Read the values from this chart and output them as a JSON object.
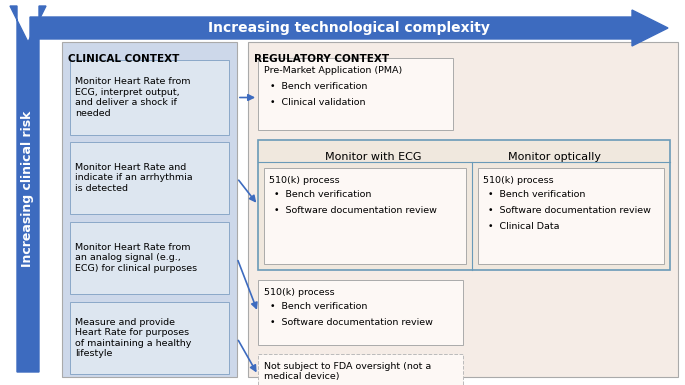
{
  "title_top": "Increasing technological complexity",
  "title_left": "Increasing clinical risk",
  "arrow_color": "#3d6bbf",
  "arrow_color_dark": "#2a4f9a",
  "reg_bg": "#f5ece6",
  "reg_border": "#aaaaaa",
  "clin_bg": "#cdd8ea",
  "clin_border": "#aaaaaa",
  "clin_box_bg": "#dde6f0",
  "clin_box_border": "#8aa8c8",
  "pma_box_bg": "#fdf8f5",
  "pma_box_border": "#aaaaaa",
  "ecg_outer_bg": "#f0e8de",
  "ecg_outer_border": "#6a9ab8",
  "inner_box_bg": "#fdf8f5",
  "inner_box_border": "#aaaaaa",
  "fda_box_border": "#bbbbbb",
  "clinical_header": "CLINICAL CONTEXT",
  "regulatory_header": "REGULATORY CONTEXT",
  "clinical_boxes": [
    "Monitor Heart Rate from\nECG, interpret output,\nand deliver a shock if\nneeded",
    "Monitor Heart Rate and\nindicate if an arrhythmia\nis detected",
    "Monitor Heart Rate from\nan analog signal (e.g.,\nECG) for clinical purposes",
    "Measure and provide\nHeart Rate for purposes\nof maintaining a healthy\nlifestyle"
  ],
  "pma_title": "Pre-Market Application (PMA)",
  "pma_bullets": [
    "Bench verification",
    "Clinical validation"
  ],
  "ecg_col_title": "Monitor with ECG",
  "opt_col_title": "Monitor optically",
  "ecg_subtitle": "510(k) process",
  "ecg_bullets": [
    "Bench verification",
    "Software documentation review"
  ],
  "opt_subtitle": "510(k) process",
  "opt_bullets": [
    "Bench verification",
    "Software documentation review",
    "Clinical Data"
  ],
  "analog_subtitle": "510(k) process",
  "analog_bullets": [
    "Bench verification",
    "Software documentation review"
  ],
  "fda_text": "Not subject to FDA oversight (not a\nmedical device)"
}
